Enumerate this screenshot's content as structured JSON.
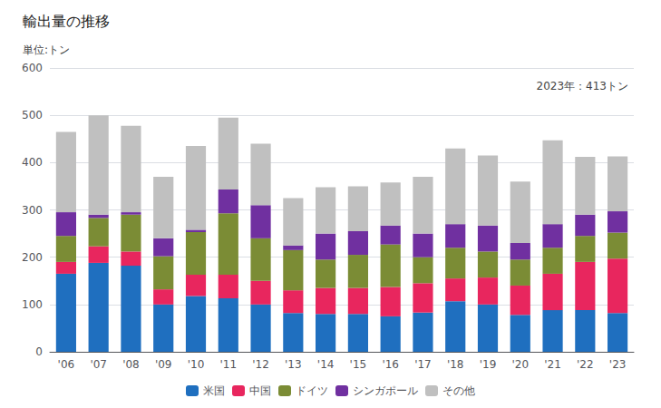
{
  "chart_data": {
    "type": "bar",
    "stacked": true,
    "title": "輸出量の推移",
    "ylabel": "単位:トン",
    "annotation": "2023年：413トン",
    "categories": [
      "'06",
      "'07",
      "'08",
      "'09",
      "'10",
      "'11",
      "'12",
      "'13",
      "'14",
      "'15",
      "'16",
      "'17",
      "'18",
      "'19",
      "'20",
      "'21",
      "'22",
      "'23"
    ],
    "series": [
      {
        "name": "米国",
        "color": "#1f6fbf",
        "values": [
          165,
          188,
          182,
          100,
          118,
          113,
          100,
          82,
          80,
          80,
          75,
          83,
          107,
          100,
          78,
          88,
          88,
          82
        ]
      },
      {
        "name": "中国",
        "color": "#e8265e",
        "values": [
          25,
          35,
          30,
          32,
          45,
          50,
          50,
          48,
          55,
          55,
          62,
          62,
          48,
          57,
          62,
          77,
          102,
          115
        ]
      },
      {
        "name": "ドイツ",
        "color": "#7b8c35",
        "values": [
          55,
          60,
          78,
          70,
          90,
          130,
          90,
          85,
          60,
          70,
          90,
          55,
          65,
          55,
          55,
          55,
          55,
          55
        ]
      },
      {
        "name": "シンガポール",
        "color": "#7030a0",
        "values": [
          50,
          7,
          5,
          38,
          5,
          50,
          70,
          10,
          55,
          50,
          40,
          50,
          50,
          55,
          35,
          50,
          45,
          45
        ]
      },
      {
        "name": "その他",
        "color": "#c0c0c0",
        "values": [
          170,
          210,
          183,
          130,
          177,
          152,
          130,
          100,
          98,
          95,
          91,
          120,
          160,
          148,
          130,
          177,
          122,
          116
        ]
      }
    ],
    "ylim": [
      0,
      600
    ],
    "yticks": [
      0,
      100,
      200,
      300,
      400,
      500,
      600
    ],
    "grid": true,
    "legend": "bottom"
  }
}
